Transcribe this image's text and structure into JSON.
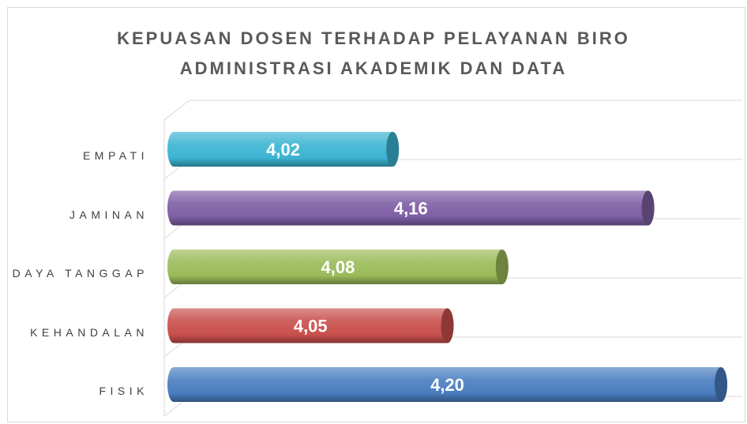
{
  "chart_data": {
    "type": "bar",
    "orientation": "horizontal",
    "title": "KEPUASAN DOSEN TERHADAP PELAYANAN BIRO ADMINISTRASI AKADEMIK DAN DATA",
    "categories": [
      "EMPATI",
      "JAMINAN",
      "DAYA TANGGAP",
      "KEHANDALAN",
      "FISIK"
    ],
    "values": [
      4.02,
      4.16,
      4.08,
      4.05,
      4.2
    ],
    "value_labels": [
      "4,02",
      "4,16",
      "4,08",
      "4,05",
      "4,20"
    ],
    "colors": [
      "#3cb4d2",
      "#7e5fa5",
      "#9bbb59",
      "#c9504d",
      "#4a7ec0"
    ],
    "xlim": [
      3.9,
      4.2
    ]
  }
}
